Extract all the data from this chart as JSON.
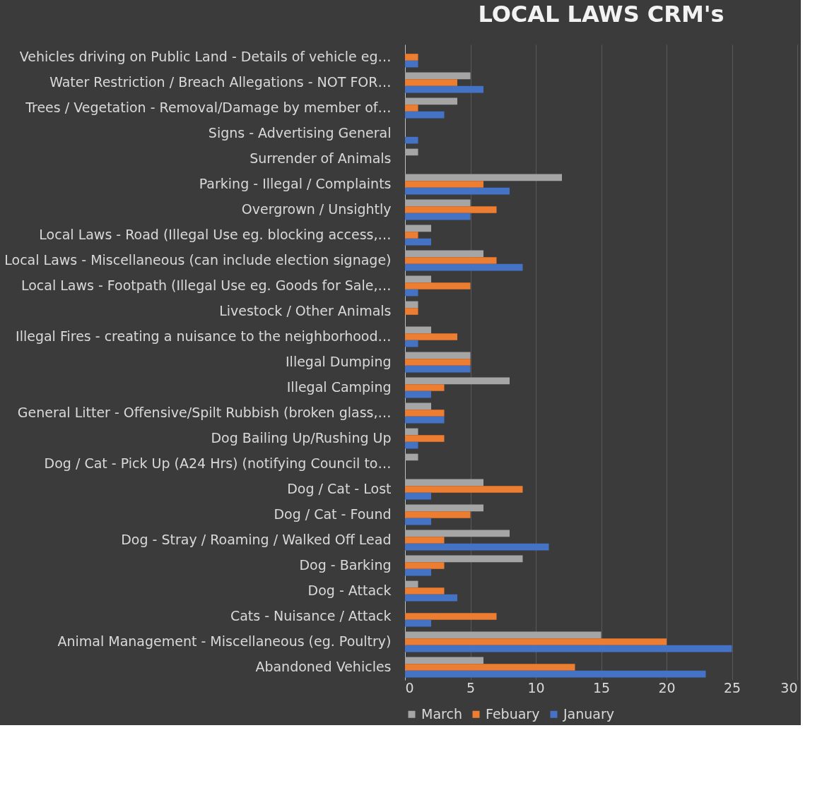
{
  "chart_data": {
    "type": "bar",
    "orientation": "horizontal",
    "title": "LOCAL LAWS CRM's",
    "categories": [
      "Vehicles driving on Public Land - Details of vehicle eg…",
      "Water Restriction / Breach Allegations - NOT FOR…",
      "Trees / Vegetation - Removal/Damage by member of…",
      "Signs - Advertising General",
      "Surrender of Animals",
      "Parking - Illegal / Complaints",
      "Overgrown / Unsightly",
      "Local Laws - Road (Illegal Use eg. blocking access,…",
      "Local Laws - Miscellaneous (can include election signage)",
      "Local Laws - Footpath (Illegal Use eg. Goods for Sale,…",
      "Livestock / Other Animals",
      "Illegal Fires - creating a nuisance to the neighborhood…",
      "Illegal Dumping",
      "Illegal Camping",
      "General Litter - Offensive/Spilt Rubbish (broken glass,…",
      "Dog Bailing Up/Rushing Up",
      "Dog / Cat - Pick Up (A24 Hrs) (notifying Council to…",
      "Dog / Cat - Lost",
      "Dog / Cat - Found",
      "Dog - Stray / Roaming / Walked Off Lead",
      "Dog - Barking",
      "Dog - Attack",
      "Cats - Nuisance / Attack",
      "Animal Management - Miscellaneous (eg. Poultry)",
      "Abandoned Vehicles"
    ],
    "series": [
      {
        "name": "March",
        "color": "#a5a5a5",
        "values": [
          0,
          5,
          4,
          0,
          1,
          12,
          5,
          2,
          6,
          2,
          1,
          2,
          5,
          8,
          2,
          1,
          1,
          6,
          6,
          8,
          9,
          1,
          0,
          15,
          6
        ]
      },
      {
        "name": "Febuary",
        "color": "#ed7d31",
        "values": [
          1,
          4,
          1,
          0,
          0,
          6,
          7,
          1,
          7,
          5,
          1,
          4,
          5,
          3,
          3,
          3,
          0,
          9,
          5,
          3,
          3,
          3,
          7,
          20,
          13
        ]
      },
      {
        "name": "January",
        "color": "#4472c4",
        "values": [
          1,
          6,
          3,
          1,
          0,
          8,
          5,
          2,
          9,
          1,
          0,
          1,
          5,
          2,
          3,
          1,
          0,
          2,
          2,
          11,
          2,
          4,
          2,
          25,
          23
        ]
      }
    ],
    "xlim": [
      0,
      30
    ],
    "xticks": [
      0,
      5,
      10,
      15,
      20,
      25,
      30
    ],
    "grid": "x",
    "legend": "bottom"
  }
}
